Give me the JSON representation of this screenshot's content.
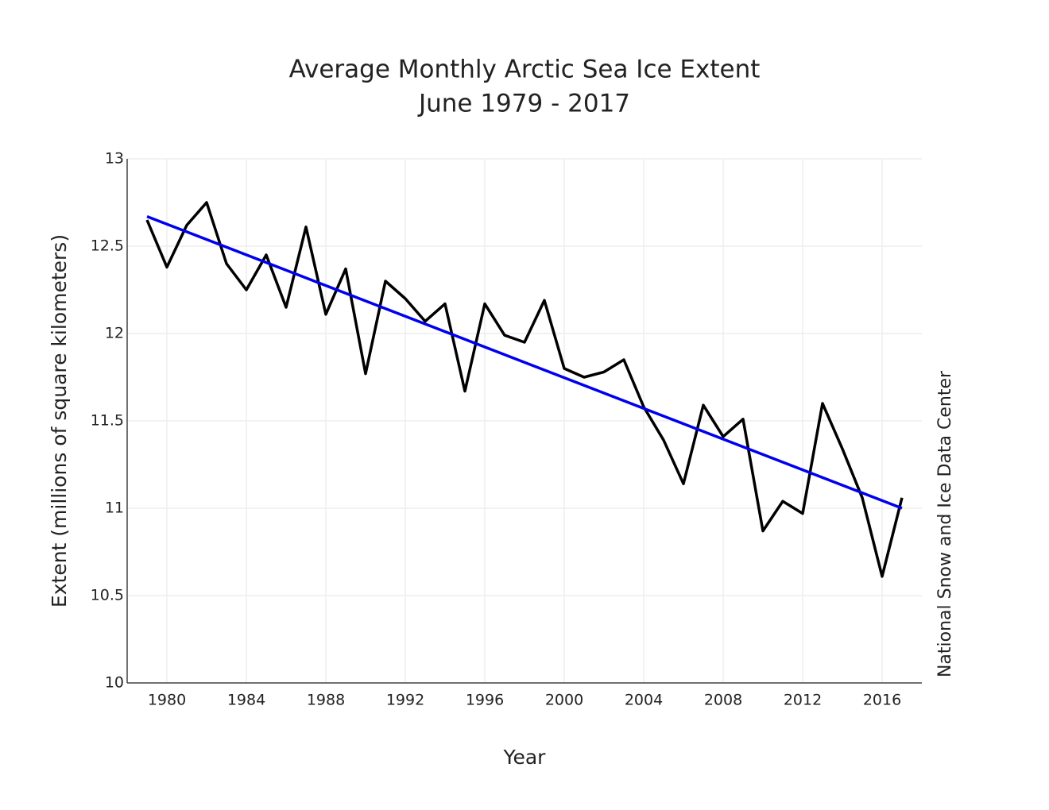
{
  "chart_data": {
    "type": "line",
    "title": "Average Monthly Arctic Sea Ice Extent",
    "subtitle": "June 1979 - 2017",
    "x_label": "Year",
    "y_label": "Extent (millions of square kilometers)",
    "source": "National Snow and Ice Data Center",
    "xlim": [
      1978,
      2018
    ],
    "xticks": [
      1980,
      1984,
      1988,
      1992,
      1996,
      2000,
      2004,
      2008,
      2012,
      2016
    ],
    "ylim": [
      10,
      13
    ],
    "yticks": [
      10,
      10.5,
      11,
      11.5,
      12,
      12.5,
      13
    ],
    "grid": true,
    "series": [
      {
        "color": "#000000",
        "x": [
          1979,
          1980,
          1981,
          1982,
          1983,
          1984,
          1985,
          1986,
          1987,
          1988,
          1989,
          1990,
          1991,
          1992,
          1993,
          1994,
          1995,
          1996,
          1997,
          1998,
          1999,
          2000,
          2001,
          2002,
          2003,
          2004,
          2005,
          2006,
          2007,
          2008,
          2009,
          2010,
          2011,
          2012,
          2013,
          2014,
          2015,
          2016,
          2017
        ],
        "values": [
          12.65,
          12.38,
          12.62,
          12.75,
          12.4,
          12.25,
          12.45,
          12.15,
          12.61,
          12.11,
          12.37,
          11.77,
          12.3,
          12.2,
          12.07,
          12.17,
          11.67,
          12.17,
          11.99,
          11.95,
          12.19,
          11.8,
          11.75,
          11.78,
          11.85,
          11.58,
          11.39,
          11.14,
          11.59,
          11.41,
          11.51,
          10.87,
          11.04,
          10.97,
          11.6,
          11.34,
          11.06,
          10.61,
          11.06
        ]
      },
      {
        "color": "#0000ee",
        "x": [
          1979,
          2017
        ],
        "values": [
          12.67,
          11.0
        ]
      }
    ]
  }
}
